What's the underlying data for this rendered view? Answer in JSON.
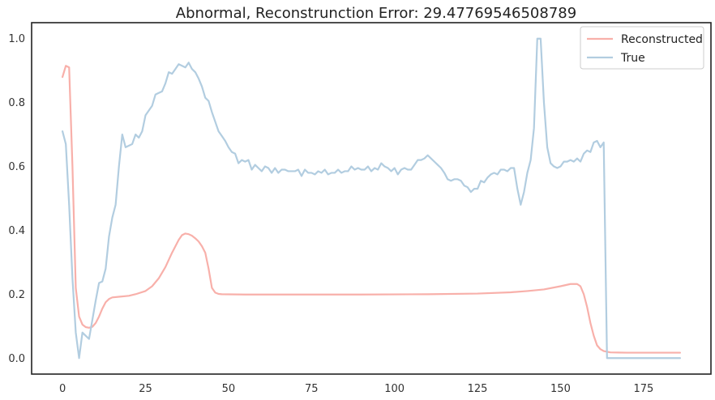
{
  "chart_data": {
    "type": "line",
    "title": "Abnormal, Reconstrunction Error: 29.47769546508789",
    "xlabel": "",
    "ylabel": "",
    "xlim": [
      -9.3,
      195.3
    ],
    "ylim": [
      -0.05,
      1.05
    ],
    "x_ticks": [
      0,
      25,
      50,
      75,
      100,
      125,
      150,
      175
    ],
    "y_ticks": [
      0.0,
      0.2,
      0.4,
      0.6,
      0.8,
      1.0
    ],
    "x_tick_labels": [
      "0",
      "25",
      "50",
      "75",
      "100",
      "125",
      "150",
      "175"
    ],
    "y_tick_labels": [
      "0.0",
      "0.2",
      "0.4",
      "0.6",
      "0.8",
      "1.0"
    ],
    "grid": false,
    "legend_position": "top-right",
    "series": [
      {
        "name": "Reconstructed",
        "color": "#f8b0aa",
        "points": [
          [
            0,
            0.88
          ],
          [
            1,
            0.915
          ],
          [
            2,
            0.91
          ],
          [
            3,
            0.6
          ],
          [
            4,
            0.22
          ],
          [
            5,
            0.13
          ],
          [
            6,
            0.105
          ],
          [
            7,
            0.097
          ],
          [
            8,
            0.095
          ],
          [
            9,
            0.098
          ],
          [
            10,
            0.11
          ],
          [
            11,
            0.13
          ],
          [
            12,
            0.155
          ],
          [
            13,
            0.175
          ],
          [
            14,
            0.185
          ],
          [
            15,
            0.19
          ],
          [
            17,
            0.192
          ],
          [
            20,
            0.195
          ],
          [
            22,
            0.2
          ],
          [
            25,
            0.21
          ],
          [
            27,
            0.225
          ],
          [
            29,
            0.25
          ],
          [
            31,
            0.285
          ],
          [
            33,
            0.33
          ],
          [
            35,
            0.37
          ],
          [
            36,
            0.385
          ],
          [
            37,
            0.39
          ],
          [
            38,
            0.388
          ],
          [
            39,
            0.383
          ],
          [
            40,
            0.375
          ],
          [
            41,
            0.365
          ],
          [
            42,
            0.35
          ],
          [
            43,
            0.33
          ],
          [
            44,
            0.28
          ],
          [
            45,
            0.22
          ],
          [
            46,
            0.205
          ],
          [
            47,
            0.201
          ],
          [
            48,
            0.2
          ],
          [
            55,
            0.199
          ],
          [
            70,
            0.199
          ],
          [
            90,
            0.199
          ],
          [
            110,
            0.2
          ],
          [
            125,
            0.202
          ],
          [
            135,
            0.206
          ],
          [
            140,
            0.21
          ],
          [
            145,
            0.215
          ],
          [
            150,
            0.225
          ],
          [
            153,
            0.232
          ],
          [
            155,
            0.232
          ],
          [
            156,
            0.225
          ],
          [
            157,
            0.2
          ],
          [
            158,
            0.16
          ],
          [
            159,
            0.11
          ],
          [
            160,
            0.07
          ],
          [
            161,
            0.04
          ],
          [
            162,
            0.028
          ],
          [
            163,
            0.022
          ],
          [
            165,
            0.018
          ],
          [
            170,
            0.017
          ],
          [
            180,
            0.017
          ],
          [
            186,
            0.017
          ]
        ]
      },
      {
        "name": "True",
        "color": "#b2cde0",
        "points": [
          [
            0,
            0.71
          ],
          [
            1,
            0.67
          ],
          [
            2,
            0.48
          ],
          [
            3,
            0.25
          ],
          [
            4,
            0.08
          ],
          [
            5,
            0.0
          ],
          [
            6,
            0.08
          ],
          [
            7,
            0.07
          ],
          [
            8,
            0.06
          ],
          [
            9,
            0.12
          ],
          [
            10,
            0.18
          ],
          [
            11,
            0.235
          ],
          [
            12,
            0.24
          ],
          [
            13,
            0.28
          ],
          [
            14,
            0.38
          ],
          [
            15,
            0.44
          ],
          [
            16,
            0.48
          ],
          [
            17,
            0.6
          ],
          [
            18,
            0.7
          ],
          [
            19,
            0.66
          ],
          [
            20,
            0.665
          ],
          [
            21,
            0.67
          ],
          [
            22,
            0.7
          ],
          [
            23,
            0.69
          ],
          [
            24,
            0.71
          ],
          [
            25,
            0.76
          ],
          [
            26,
            0.775
          ],
          [
            27,
            0.79
          ],
          [
            28,
            0.825
          ],
          [
            29,
            0.83
          ],
          [
            30,
            0.835
          ],
          [
            31,
            0.86
          ],
          [
            32,
            0.895
          ],
          [
            33,
            0.89
          ],
          [
            34,
            0.905
          ],
          [
            35,
            0.92
          ],
          [
            36,
            0.915
          ],
          [
            37,
            0.91
          ],
          [
            38,
            0.925
          ],
          [
            39,
            0.905
          ],
          [
            40,
            0.895
          ],
          [
            41,
            0.875
          ],
          [
            42,
            0.85
          ],
          [
            43,
            0.815
          ],
          [
            44,
            0.805
          ],
          [
            45,
            0.77
          ],
          [
            46,
            0.74
          ],
          [
            47,
            0.71
          ],
          [
            48,
            0.695
          ],
          [
            49,
            0.68
          ],
          [
            50,
            0.66
          ],
          [
            51,
            0.645
          ],
          [
            52,
            0.64
          ],
          [
            53,
            0.61
          ],
          [
            54,
            0.62
          ],
          [
            55,
            0.615
          ],
          [
            56,
            0.62
          ],
          [
            57,
            0.59
          ],
          [
            58,
            0.605
          ],
          [
            59,
            0.595
          ],
          [
            60,
            0.585
          ],
          [
            61,
            0.6
          ],
          [
            62,
            0.595
          ],
          [
            63,
            0.58
          ],
          [
            64,
            0.595
          ],
          [
            65,
            0.58
          ],
          [
            66,
            0.59
          ],
          [
            67,
            0.59
          ],
          [
            68,
            0.585
          ],
          [
            69,
            0.585
          ],
          [
            70,
            0.585
          ],
          [
            71,
            0.59
          ],
          [
            72,
            0.57
          ],
          [
            73,
            0.59
          ],
          [
            74,
            0.58
          ],
          [
            75,
            0.58
          ],
          [
            76,
            0.575
          ],
          [
            77,
            0.585
          ],
          [
            78,
            0.58
          ],
          [
            79,
            0.59
          ],
          [
            80,
            0.575
          ],
          [
            81,
            0.58
          ],
          [
            82,
            0.58
          ],
          [
            83,
            0.59
          ],
          [
            84,
            0.58
          ],
          [
            85,
            0.585
          ],
          [
            86,
            0.585
          ],
          [
            87,
            0.6
          ],
          [
            88,
            0.59
          ],
          [
            89,
            0.595
          ],
          [
            90,
            0.59
          ],
          [
            91,
            0.59
          ],
          [
            92,
            0.6
          ],
          [
            93,
            0.585
          ],
          [
            94,
            0.595
          ],
          [
            95,
            0.59
          ],
          [
            96,
            0.61
          ],
          [
            97,
            0.6
          ],
          [
            98,
            0.595
          ],
          [
            99,
            0.585
          ],
          [
            100,
            0.595
          ],
          [
            101,
            0.575
          ],
          [
            102,
            0.59
          ],
          [
            103,
            0.595
          ],
          [
            104,
            0.59
          ],
          [
            105,
            0.59
          ],
          [
            106,
            0.605
          ],
          [
            107,
            0.62
          ],
          [
            108,
            0.62
          ],
          [
            109,
            0.625
          ],
          [
            110,
            0.635
          ],
          [
            111,
            0.625
          ],
          [
            112,
            0.615
          ],
          [
            113,
            0.605
          ],
          [
            114,
            0.595
          ],
          [
            115,
            0.58
          ],
          [
            116,
            0.56
          ],
          [
            117,
            0.555
          ],
          [
            118,
            0.56
          ],
          [
            119,
            0.56
          ],
          [
            120,
            0.555
          ],
          [
            121,
            0.54
          ],
          [
            122,
            0.535
          ],
          [
            123,
            0.52
          ],
          [
            124,
            0.53
          ],
          [
            125,
            0.53
          ],
          [
            126,
            0.555
          ],
          [
            127,
            0.55
          ],
          [
            128,
            0.565
          ],
          [
            129,
            0.575
          ],
          [
            130,
            0.58
          ],
          [
            131,
            0.575
          ],
          [
            132,
            0.59
          ],
          [
            133,
            0.59
          ],
          [
            134,
            0.585
          ],
          [
            135,
            0.595
          ],
          [
            136,
            0.595
          ],
          [
            137,
            0.53
          ],
          [
            138,
            0.48
          ],
          [
            139,
            0.52
          ],
          [
            140,
            0.58
          ],
          [
            141,
            0.62
          ],
          [
            142,
            0.72
          ],
          [
            143,
            1.0
          ],
          [
            144,
            1.0
          ],
          [
            145,
            0.8
          ],
          [
            146,
            0.66
          ],
          [
            147,
            0.61
          ],
          [
            148,
            0.6
          ],
          [
            149,
            0.595
          ],
          [
            150,
            0.6
          ],
          [
            151,
            0.615
          ],
          [
            152,
            0.615
          ],
          [
            153,
            0.62
          ],
          [
            154,
            0.615
          ],
          [
            155,
            0.625
          ],
          [
            156,
            0.615
          ],
          [
            157,
            0.64
          ],
          [
            158,
            0.65
          ],
          [
            159,
            0.645
          ],
          [
            160,
            0.675
          ],
          [
            161,
            0.68
          ],
          [
            162,
            0.66
          ],
          [
            163,
            0.675
          ],
          [
            164,
            0.0
          ],
          [
            165,
            0.0
          ],
          [
            170,
            0.0
          ],
          [
            180,
            0.0
          ],
          [
            186,
            0.0
          ]
        ]
      }
    ]
  }
}
